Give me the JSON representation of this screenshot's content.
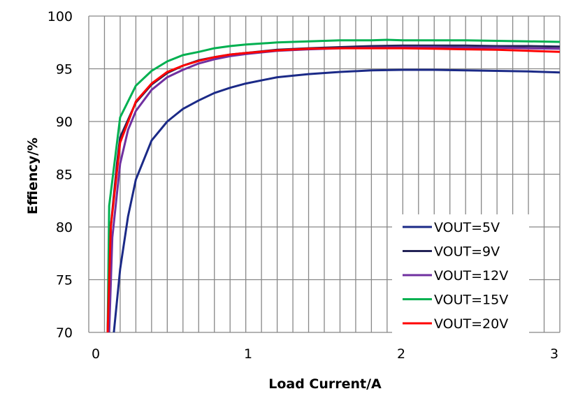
{
  "chart_data": {
    "type": "line",
    "title": "",
    "xlabel": "Load Current/A",
    "ylabel": "Effiency/%",
    "xlim": [
      0,
      3
    ],
    "ylim": [
      70,
      100
    ],
    "x_ticks": [
      "0",
      "1",
      "2",
      "3"
    ],
    "y_ticks": [
      "70",
      "75",
      "80",
      "85",
      "90",
      "95",
      "100"
    ],
    "x_minor_grid_step": 0.1,
    "y_grid_step": 5,
    "grid": true,
    "legend_position": "bottom-right",
    "series": [
      {
        "name": "VOUT=5V",
        "color": "#1b2a87",
        "x": [
          0.16,
          0.2,
          0.25,
          0.3,
          0.4,
          0.5,
          0.6,
          0.7,
          0.8,
          0.9,
          1.0,
          1.2,
          1.4,
          1.6,
          1.8,
          2.0,
          2.2,
          2.4,
          2.6,
          2.8,
          3.0
        ],
        "y": [
          70,
          76,
          81,
          84.5,
          88.2,
          90.0,
          91.2,
          92.0,
          92.7,
          93.2,
          93.6,
          94.2,
          94.5,
          94.7,
          94.85,
          94.9,
          94.9,
          94.85,
          94.8,
          94.75,
          94.65
        ]
      },
      {
        "name": "VOUT=9V",
        "color": "#232356",
        "x": [
          0.12,
          0.14,
          0.18,
          0.2,
          0.3,
          0.4,
          0.5,
          0.6,
          0.7,
          0.8,
          0.9,
          1.0,
          1.2,
          1.4,
          1.6,
          1.8,
          2.0,
          2.2,
          2.4,
          2.6,
          2.8,
          3.0
        ],
        "y": [
          70,
          80,
          86,
          88.5,
          91.8,
          93.5,
          94.6,
          95.3,
          95.8,
          96.1,
          96.35,
          96.5,
          96.8,
          96.95,
          97.05,
          97.15,
          97.2,
          97.2,
          97.2,
          97.15,
          97.15,
          97.1
        ]
      },
      {
        "name": "VOUT=12V",
        "color": "#7030a0",
        "x": [
          0.13,
          0.15,
          0.2,
          0.25,
          0.3,
          0.4,
          0.5,
          0.6,
          0.7,
          0.8,
          0.9,
          1.0,
          1.2,
          1.4,
          1.6,
          1.8,
          2.0,
          2.2,
          2.4,
          2.6,
          2.8,
          3.0
        ],
        "y": [
          70,
          79,
          86,
          89.2,
          91.0,
          93.0,
          94.2,
          94.9,
          95.5,
          95.9,
          96.2,
          96.4,
          96.7,
          96.85,
          96.95,
          97.0,
          97.05,
          97.05,
          97.0,
          97.0,
          96.95,
          96.9
        ]
      },
      {
        "name": "VOUT=15V",
        "color": "#00b050",
        "x": [
          0.12,
          0.13,
          0.2,
          0.3,
          0.4,
          0.5,
          0.6,
          0.7,
          0.8,
          0.9,
          1.0,
          1.2,
          1.4,
          1.6,
          1.8,
          1.9,
          2.0,
          2.2,
          2.4,
          2.6,
          2.8,
          3.0
        ],
        "y": [
          70,
          82,
          90.4,
          93.4,
          94.8,
          95.7,
          96.3,
          96.6,
          96.95,
          97.15,
          97.3,
          97.5,
          97.6,
          97.7,
          97.7,
          97.75,
          97.7,
          97.7,
          97.7,
          97.65,
          97.6,
          97.55
        ]
      },
      {
        "name": "VOUT=20V",
        "color": "#ff0000",
        "x": [
          0.12,
          0.14,
          0.2,
          0.3,
          0.4,
          0.5,
          0.6,
          0.7,
          0.8,
          0.9,
          1.0,
          1.2,
          1.4,
          1.6,
          1.8,
          2.0,
          2.2,
          2.4,
          2.6,
          2.8,
          3.0
        ],
        "y": [
          70,
          80,
          88.0,
          91.9,
          93.6,
          94.7,
          95.3,
          95.75,
          96.1,
          96.35,
          96.5,
          96.75,
          96.9,
          96.95,
          96.95,
          96.95,
          96.9,
          96.85,
          96.8,
          96.7,
          96.6
        ]
      }
    ]
  }
}
